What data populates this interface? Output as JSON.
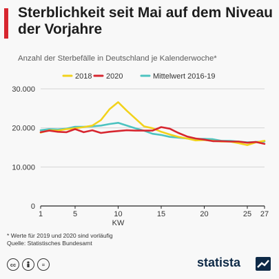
{
  "header": {
    "title": "Sterblichkeit seit Mai auf dem Niveau der Vorjahre",
    "subtitle": "Anzahl der Sterbefälle in Deutschland je Kalenderwoche*"
  },
  "footer": {
    "note": "* Werte für 2019 und 2020 sind vorläufig",
    "source": "Quelle: Statistisches Bundesamt",
    "brand": "statista",
    "license_icons": [
      "creative-commons-icon",
      "attribution-icon",
      "no-derivatives-icon"
    ]
  },
  "colors": {
    "accent": "#d7262f",
    "s2018": "#f2d21c",
    "s2020": "#d7262f",
    "mean": "#4cc3c0",
    "brand": "#0e2a47"
  },
  "chart_data": {
    "type": "line",
    "title": "Sterblichkeit seit Mai auf dem Niveau der Vorjahre",
    "subtitle": "Anzahl der Sterbefälle in Deutschland je Kalenderwoche*",
    "xlabel": "KW",
    "ylabel": "",
    "xlim": [
      1,
      27
    ],
    "ylim": [
      0,
      30000
    ],
    "x_ticks": [
      1,
      5,
      10,
      15,
      20,
      25,
      27
    ],
    "y_ticks": [
      0,
      10000,
      20000,
      30000
    ],
    "y_tick_labels": [
      "0",
      "10.000",
      "20.000",
      "30.000"
    ],
    "grid": "horizontal",
    "legend_position": "top",
    "x": [
      1,
      2,
      3,
      4,
      5,
      6,
      7,
      8,
      9,
      10,
      11,
      12,
      13,
      14,
      15,
      16,
      17,
      18,
      19,
      20,
      21,
      22,
      23,
      24,
      25,
      26,
      27
    ],
    "series": [
      {
        "name": "2018",
        "color": "#f2d21c",
        "values": [
          18800,
          19400,
          19300,
          19700,
          19900,
          20200,
          20600,
          22000,
          24800,
          26600,
          24400,
          22400,
          20400,
          19900,
          19000,
          18300,
          17700,
          17300,
          16800,
          16900,
          16700,
          16500,
          16500,
          16100,
          15600,
          16300,
          16700
        ]
      },
      {
        "name": "2020",
        "color": "#d7262f",
        "values": [
          18900,
          19300,
          19000,
          18900,
          19700,
          18900,
          19400,
          18700,
          19000,
          19200,
          19400,
          19300,
          19300,
          19300,
          20200,
          19800,
          18700,
          17800,
          17300,
          17000,
          16600,
          16600,
          16500,
          16500,
          16200,
          16400,
          15900
        ]
      },
      {
        "name": "Mittelwert 2016-19",
        "color": "#4cc3c0",
        "values": [
          19400,
          19700,
          19600,
          19800,
          20300,
          20300,
          20400,
          20600,
          21000,
          21300,
          20600,
          19900,
          19300,
          18500,
          18200,
          17700,
          17500,
          17300,
          17200,
          17200,
          17100,
          16700,
          16700,
          16500,
          16300,
          16400,
          16500
        ]
      }
    ]
  }
}
